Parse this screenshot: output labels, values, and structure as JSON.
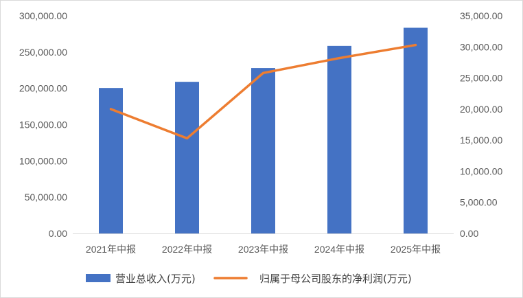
{
  "chart_data": {
    "type": "bar",
    "categories": [
      "2021年中报",
      "2022年中报",
      "2023年中报",
      "2024年中报",
      "2025年中报"
    ],
    "series": [
      {
        "name": "营业总收入(万元)",
        "type": "bar",
        "axis": "left",
        "color": "#4472C4",
        "values": [
          200500,
          209000,
          228000,
          258500,
          283500
        ]
      },
      {
        "name": "归属于母公司股东的净利润(万元)",
        "type": "line",
        "axis": "right",
        "color": "#ED7D31",
        "values": [
          20000,
          15300,
          25800,
          28200,
          30300
        ]
      }
    ],
    "ylim_left": [
      0,
      300000
    ],
    "ylim_right": [
      0,
      35000
    ],
    "yticks_left": [
      "0.00",
      "50,000.00",
      "100,000.00",
      "150,000.00",
      "200,000.00",
      "250,000.00",
      "300,000.00"
    ],
    "yticks_right": [
      "0.00",
      "5,000.00",
      "10,000.00",
      "15,000.00",
      "20,000.00",
      "25,000.00",
      "30,000.00",
      "35,000.00"
    ],
    "grid": false,
    "legend_position": "bottom"
  }
}
